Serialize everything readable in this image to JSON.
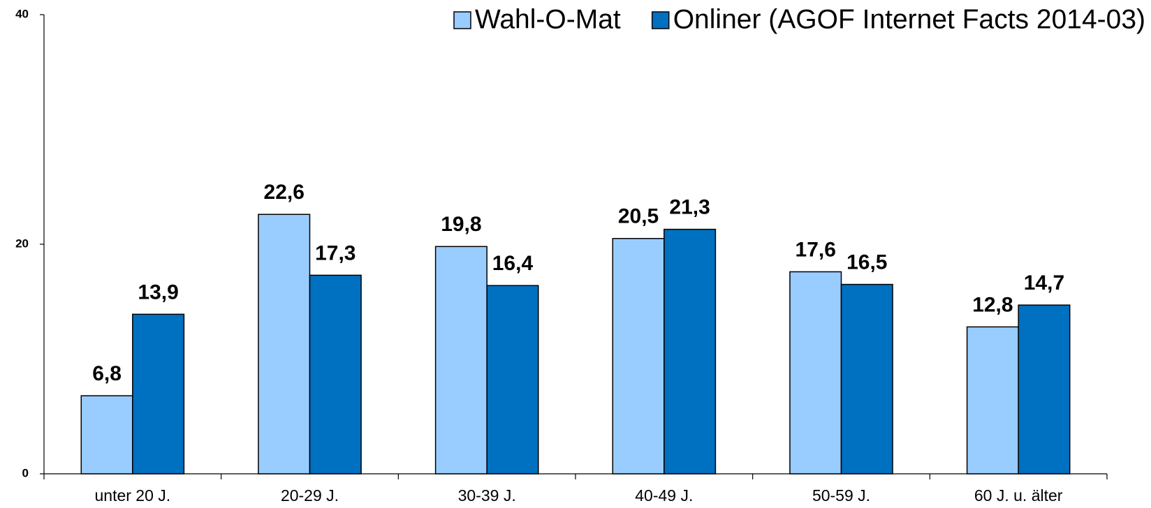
{
  "chart_data": {
    "type": "bar",
    "categories": [
      "unter 20 J.",
      "20-29 J.",
      "30-39 J.",
      "40-49 J.",
      "50-59 J.",
      "60 J. u. älter"
    ],
    "series": [
      {
        "name": "Wahl-O-Mat",
        "color": "#99ccff",
        "values": [
          6.8,
          22.6,
          19.8,
          20.5,
          17.6,
          12.8
        ],
        "value_labels": [
          "6,8",
          "22,6",
          "19,8",
          "20,5",
          "17,6",
          "12,8"
        ]
      },
      {
        "name": "Onliner (AGOF Internet Facts 2014-03)",
        "color": "#0070c0",
        "values": [
          13.9,
          17.3,
          16.4,
          21.3,
          16.5,
          14.7
        ],
        "value_labels": [
          "13,9",
          "17,3",
          "16,4",
          "21,3",
          "16,5",
          "14,7"
        ]
      }
    ],
    "ylim": [
      0,
      40
    ],
    "yticks": [
      0,
      20,
      40
    ],
    "grid": false,
    "legend": "top-right"
  }
}
